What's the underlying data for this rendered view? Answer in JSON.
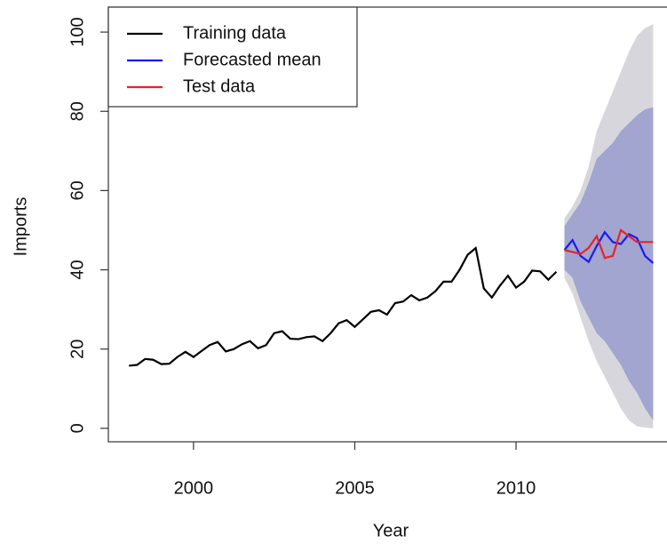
{
  "chart_data": {
    "type": "forecast",
    "x_label": "Year",
    "y_label": "Imports",
    "xlim": [
      1997.36,
      2014.68
    ],
    "ylim": [
      -3.4,
      106.3
    ],
    "xticks": [
      2000,
      2005,
      2010
    ],
    "yticks": [
      0,
      20,
      40,
      60,
      80,
      100
    ],
    "legend": "top-left",
    "intervals": [
      {
        "color": "#d6d6dc",
        "x": [
          2011.5,
          2011.75,
          2012,
          2012.25,
          2012.5,
          2012.75,
          2013,
          2013.25,
          2013.5,
          2013.75,
          2014,
          2014.25
        ],
        "upper": [
          53,
          56,
          60,
          66,
          75,
          80,
          85,
          90,
          95,
          99,
          101,
          102
        ],
        "lower": [
          38,
          34,
          28,
          22,
          17,
          13,
          9,
          5,
          2,
          0.5,
          0.2,
          0
        ]
      },
      {
        "color": "#a1a5cf",
        "x": [
          2011.5,
          2011.75,
          2012,
          2012.25,
          2012.5,
          2012.75,
          2013,
          2013.25,
          2013.5,
          2013.75,
          2014,
          2014.25
        ],
        "upper": [
          51,
          54,
          57,
          62,
          68,
          70,
          72,
          75,
          77,
          79,
          80.5,
          81
        ],
        "lower": [
          40,
          38,
          32,
          28,
          24,
          22,
          19,
          16,
          12,
          9,
          5,
          2
        ]
      }
    ],
    "series": [
      {
        "name": "Training data",
        "color": "#000000",
        "x": [
          1998,
          1998.25,
          1998.5,
          1998.75,
          1999,
          1999.25,
          1999.5,
          1999.75,
          2000,
          2000.25,
          2000.5,
          2000.75,
          2001,
          2001.25,
          2001.5,
          2001.75,
          2002,
          2002.25,
          2002.5,
          2002.75,
          2003,
          2003.25,
          2003.5,
          2003.75,
          2004,
          2004.25,
          2004.5,
          2004.75,
          2005,
          2005.25,
          2005.5,
          2005.75,
          2006,
          2006.25,
          2006.5,
          2006.75,
          2007,
          2007.25,
          2007.5,
          2007.75,
          2008,
          2008.25,
          2008.5,
          2008.75,
          2009,
          2009.25,
          2009.5,
          2009.75,
          2010,
          2010.25,
          2010.5,
          2010.75,
          2011,
          2011.25
        ],
        "values": [
          15.8,
          16,
          17.5,
          17.3,
          16.2,
          16.3,
          18,
          19.3,
          18,
          19.5,
          21,
          21.8,
          19.4,
          20,
          21.2,
          22,
          20.2,
          21,
          24,
          24.5,
          22.6,
          22.5,
          23,
          23.2,
          22,
          24,
          26.5,
          27.3,
          25.6,
          27.5,
          29.4,
          29.8,
          28.7,
          31.6,
          32,
          33.6,
          32.3,
          33,
          34.6,
          37,
          37,
          40,
          43.8,
          45.5,
          35.3,
          33,
          36,
          38.5,
          35.5,
          37,
          39.8,
          39.6,
          37.5,
          39.5
        ]
      },
      {
        "name": "Forecasted mean",
        "color": "#1a1aee",
        "x": [
          2011.5,
          2011.75,
          2012,
          2012.25,
          2012.5,
          2012.75,
          2013,
          2013.25,
          2013.5,
          2013.75,
          2014,
          2014.25
        ],
        "values": [
          45,
          47.5,
          43.5,
          42,
          46,
          49.5,
          47,
          46.5,
          49,
          48,
          43.5,
          41.7
        ]
      },
      {
        "name": "Test data",
        "color": "#e8222a",
        "x": [
          2011.5,
          2011.75,
          2012,
          2012.25,
          2012.5,
          2012.75,
          2013,
          2013.25,
          2013.5,
          2013.75,
          2014,
          2014.25
        ],
        "values": [
          45,
          44.5,
          44,
          45.5,
          48.5,
          43,
          43.5,
          50,
          48.5,
          47,
          47,
          47
        ]
      }
    ]
  }
}
